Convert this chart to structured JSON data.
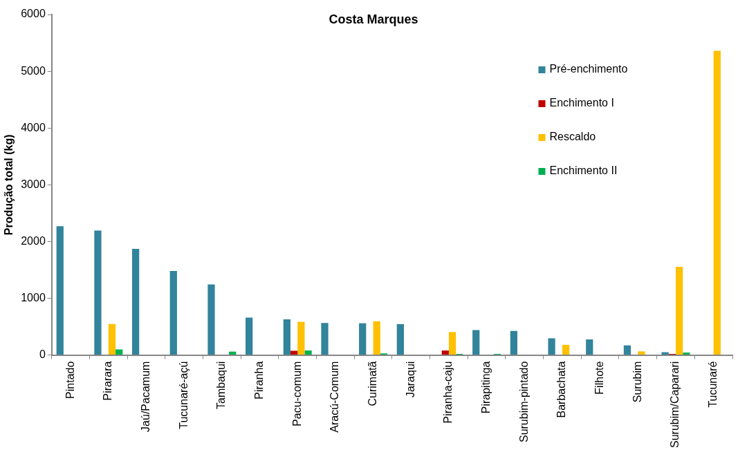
{
  "chart_data": {
    "type": "bar",
    "title": "Costa Marques",
    "ylabel": "Produção total (kg)",
    "categories": [
      "Pintado",
      "Pirarara",
      "Jaú/Pacamum",
      "Tucunaré-açú",
      "Tambaqui",
      "Piranha",
      "Pacu-comum",
      "Aracú-Comum",
      "Curimatã",
      "Jaraqui",
      "Piranha-caju",
      "Pirapitinga",
      "Surubim-pintado",
      "Barbachata",
      "Filhote",
      "Surubim",
      "Surubim/Caparari",
      "Tucunaré"
    ],
    "series": [
      {
        "name": "Pré-enchimento",
        "color": "#31849b",
        "values": [
          2270,
          2195,
          1870,
          1480,
          1245,
          660,
          630,
          565,
          560,
          545,
          null,
          440,
          425,
          295,
          275,
          170,
          50,
          null
        ]
      },
      {
        "name": "Enchimento I",
        "color": "#c00000",
        "values": [
          null,
          null,
          null,
          null,
          null,
          null,
          75,
          null,
          null,
          null,
          80,
          null,
          null,
          null,
          null,
          null,
          20,
          null
        ]
      },
      {
        "name": "Rescaldo",
        "color": "#ffc000",
        "values": [
          null,
          545,
          null,
          null,
          null,
          null,
          585,
          null,
          595,
          null,
          405,
          null,
          null,
          180,
          null,
          65,
          1555,
          5360
        ]
      },
      {
        "name": "Enchimento II",
        "color": "#00b050",
        "values": [
          null,
          100,
          null,
          null,
          60,
          null,
          80,
          null,
          30,
          null,
          20,
          20,
          null,
          null,
          null,
          null,
          45,
          null
        ]
      }
    ],
    "ylim": [
      0,
      6000
    ],
    "yticks": [
      0,
      1000,
      2000,
      3000,
      4000,
      5000,
      6000
    ],
    "grid": false,
    "legend": "top right"
  }
}
